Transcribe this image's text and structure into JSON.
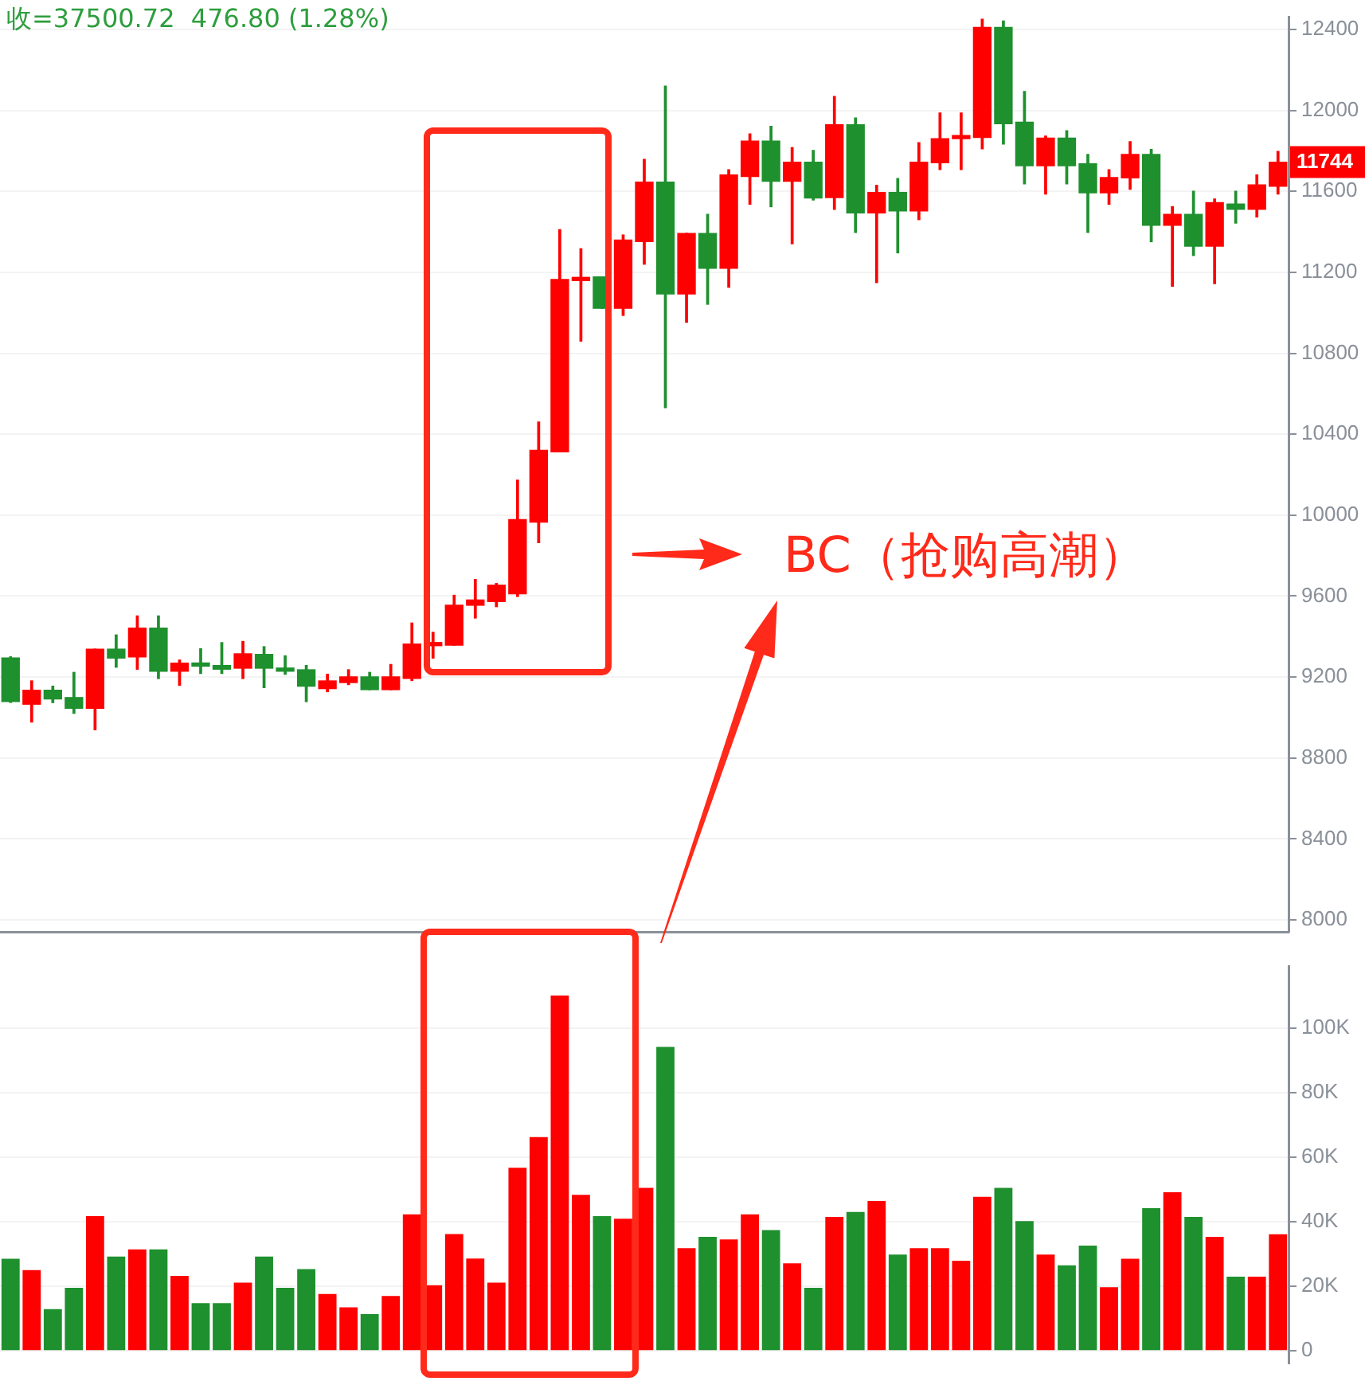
{
  "chart_data": [
    {
      "type": "candlestick",
      "categories": [
        null,
        null,
        null,
        null,
        null,
        null,
        null,
        null,
        null,
        null,
        null,
        null,
        null,
        null,
        null,
        null,
        null,
        null,
        null,
        null,
        null,
        null,
        null,
        null,
        null,
        null,
        null,
        null,
        null,
        null,
        null,
        null,
        null,
        null,
        null,
        null,
        null,
        null,
        null,
        null,
        null,
        null,
        null,
        null,
        null,
        null,
        null,
        null,
        null,
        null,
        null,
        null,
        null,
        null,
        null,
        null,
        null,
        null,
        null,
        null,
        null
      ],
      "ohlc": [
        [
          9294,
          9300,
          9075,
          9079
        ],
        [
          9066,
          9181,
          8978,
          9135
        ],
        [
          9135,
          9155,
          9074,
          9092
        ],
        [
          9099,
          9223,
          9021,
          9046
        ],
        [
          9046,
          9338,
          8940,
          9338
        ],
        [
          9338,
          9408,
          9249,
          9294
        ],
        [
          9300,
          9502,
          9239,
          9442
        ],
        [
          9442,
          9502,
          9193,
          9229
        ],
        [
          9229,
          9284,
          9160,
          9269
        ],
        [
          9264,
          9340,
          9218,
          9254
        ],
        [
          9257,
          9370,
          9218,
          9239
        ],
        [
          9244,
          9376,
          9193,
          9315
        ],
        [
          9312,
          9350,
          9148,
          9244
        ],
        [
          9244,
          9305,
          9214,
          9229
        ],
        [
          9236,
          9257,
          9079,
          9155
        ],
        [
          9143,
          9214,
          9128,
          9181
        ],
        [
          9173,
          9236,
          9163,
          9201
        ],
        [
          9201,
          9223,
          9138,
          9138
        ],
        [
          9138,
          9262,
          9138,
          9201
        ],
        [
          9193,
          9467,
          9183,
          9363
        ],
        [
          9355,
          9421,
          9294,
          9365
        ],
        [
          9358,
          9604,
          9358,
          9555
        ],
        [
          9555,
          9682,
          9492,
          9581
        ],
        [
          9573,
          9662,
          9548,
          9654
        ],
        [
          9611,
          10173,
          9599,
          9978
        ],
        [
          9966,
          10460,
          9864,
          10320
        ],
        [
          10313,
          11410,
          10313,
          11164
        ],
        [
          11159,
          11316,
          10860,
          11174
        ],
        [
          11177,
          11177,
          11022,
          11022
        ],
        [
          11022,
          11384,
          10987,
          11359
        ],
        [
          11351,
          11757,
          11240,
          11645
        ],
        [
          11645,
          12119,
          10531,
          11093
        ],
        [
          11093,
          11392,
          10953,
          11392
        ],
        [
          11392,
          11486,
          11042,
          11220
        ],
        [
          11220,
          11706,
          11126,
          11681
        ],
        [
          11673,
          11883,
          11536,
          11848
        ],
        [
          11848,
          11921,
          11524,
          11650
        ],
        [
          11650,
          11815,
          11341,
          11744
        ],
        [
          11744,
          11802,
          11557,
          11567
        ],
        [
          11569,
          12068,
          11511,
          11929
        ],
        [
          11929,
          11962,
          11397,
          11493
        ],
        [
          11493,
          11630,
          11149,
          11594
        ],
        [
          11594,
          11663,
          11296,
          11503
        ],
        [
          11503,
          11840,
          11460,
          11744
        ],
        [
          11741,
          11987,
          11708,
          11860
        ],
        [
          11860,
          11987,
          11708,
          11873
        ],
        [
          11866,
          12450,
          11810,
          12410
        ],
        [
          12410,
          12441,
          11833,
          11934
        ],
        [
          11941,
          12093,
          11637,
          11726
        ],
        [
          11726,
          11873,
          11587,
          11863
        ],
        [
          11863,
          11899,
          11637,
          11726
        ],
        [
          11736,
          11782,
          11397,
          11592
        ],
        [
          11592,
          11706,
          11536,
          11668
        ],
        [
          11666,
          11845,
          11610,
          11782
        ],
        [
          11782,
          11807,
          11351,
          11432
        ],
        [
          11432,
          11524,
          11131,
          11486
        ],
        [
          11486,
          11600,
          11283,
          11329
        ],
        [
          11329,
          11562,
          11144,
          11544
        ],
        [
          11537,
          11600,
          11443,
          11511
        ],
        [
          11511,
          11681,
          11473,
          11632
        ],
        [
          11625,
          11797,
          11587,
          11744
        ]
      ],
      "colors": [
        "#1e902e",
        "#ff0000",
        "#1e902e",
        "#1e902e",
        "#ff0000",
        "#1e902e",
        "#ff0000",
        "#1e902e",
        "#ff0000",
        "#1e902e",
        "#1e902e",
        "#ff0000",
        "#1e902e",
        "#1e902e",
        "#1e902e",
        "#ff0000",
        "#ff0000",
        "#1e902e",
        "#ff0000",
        "#ff0000",
        "#ff0000",
        "#ff0000",
        "#ff0000",
        "#ff0000",
        "#ff0000",
        "#ff0000",
        "#ff0000",
        "#ff0000",
        "#1e902e",
        "#ff0000",
        "#ff0000",
        "#1e902e",
        "#ff0000",
        "#1e902e",
        "#ff0000",
        "#ff0000",
        "#1e902e",
        "#ff0000",
        "#1e902e",
        "#ff0000",
        "#1e902e",
        "#ff0000",
        "#1e902e",
        "#ff0000",
        "#ff0000",
        "#ff0000",
        "#ff0000",
        "#1e902e",
        "#1e902e",
        "#ff0000",
        "#1e902e",
        "#1e902e",
        "#ff0000",
        "#ff0000",
        "#1e902e",
        "#ff0000",
        "#1e902e",
        "#ff0000",
        "#1e902e",
        "#ff0000",
        "#ff0000"
      ],
      "ylim": [
        7940,
        12460
      ],
      "yticks": [
        8000,
        8400,
        8800,
        9200,
        9600,
        10000,
        10400,
        10800,
        11200,
        11600,
        12000,
        12400
      ],
      "grid": "y",
      "tick_labels": "y",
      "annotations": [
        "收=37500.72  476.80 (1.28%)",
        "BC（抢购高潮）",
        "11744"
      ]
    },
    {
      "type": "bar",
      "categories": [
        null,
        null,
        null,
        null,
        null,
        null,
        null,
        null,
        null,
        null,
        null,
        null,
        null,
        null,
        null,
        null,
        null,
        null,
        null,
        null,
        null,
        null,
        null,
        null,
        null,
        null,
        null,
        null,
        null,
        null,
        null,
        null,
        null,
        null,
        null,
        null,
        null,
        null,
        null,
        null,
        null,
        null,
        null,
        null,
        null,
        null,
        null,
        null,
        null,
        null,
        null,
        null,
        null,
        null,
        null,
        null,
        null,
        null,
        null,
        null,
        null
      ],
      "values": [
        28500,
        25000,
        12900,
        19500,
        41700,
        29200,
        31400,
        31400,
        23200,
        14800,
        14800,
        21100,
        29200,
        19500,
        25300,
        17600,
        13500,
        11400,
        17000,
        42300,
        20300,
        36200,
        28600,
        21100,
        56700,
        66200,
        110000,
        48300,
        41700,
        40900,
        50500,
        94100,
        31800,
        35300,
        34500,
        42300,
        37400,
        27100,
        19500,
        41500,
        43000,
        46400,
        29800,
        31800,
        31800,
        27900,
        47700,
        50500,
        40200,
        29800,
        26500,
        32600,
        19700,
        28500,
        44200,
        49100,
        41500,
        35300,
        23000,
        23000,
        36100
      ],
      "colors": [
        "#1e902e",
        "#ff0000",
        "#1e902e",
        "#1e902e",
        "#ff0000",
        "#1e902e",
        "#ff0000",
        "#1e902e",
        "#ff0000",
        "#1e902e",
        "#1e902e",
        "#ff0000",
        "#1e902e",
        "#1e902e",
        "#1e902e",
        "#ff0000",
        "#ff0000",
        "#1e902e",
        "#ff0000",
        "#ff0000",
        "#ff0000",
        "#ff0000",
        "#ff0000",
        "#ff0000",
        "#ff0000",
        "#ff0000",
        "#ff0000",
        "#ff0000",
        "#1e902e",
        "#ff0000",
        "#ff0000",
        "#1e902e",
        "#ff0000",
        "#1e902e",
        "#ff0000",
        "#ff0000",
        "#1e902e",
        "#ff0000",
        "#1e902e",
        "#ff0000",
        "#1e902e",
        "#ff0000",
        "#1e902e",
        "#ff0000",
        "#ff0000",
        "#ff0000",
        "#ff0000",
        "#1e902e",
        "#1e902e",
        "#ff0000",
        "#1e902e",
        "#1e902e",
        "#ff0000",
        "#ff0000",
        "#1e902e",
        "#ff0000",
        "#1e902e",
        "#ff0000",
        "#1e902e",
        "#ff0000",
        "#ff0000"
      ],
      "ylim": [
        -4000,
        119000
      ],
      "yticks": [
        0,
        {
          "value": 20000,
          "label": "20K"
        },
        {
          "value": 40000,
          "label": "40K"
        },
        {
          "value": 60000,
          "label": "60K"
        },
        {
          "value": 80000,
          "label": "80K"
        },
        {
          "value": 100000,
          "label": "100K"
        }
      ],
      "grid": "y",
      "tick_labels": "y"
    }
  ]
}
